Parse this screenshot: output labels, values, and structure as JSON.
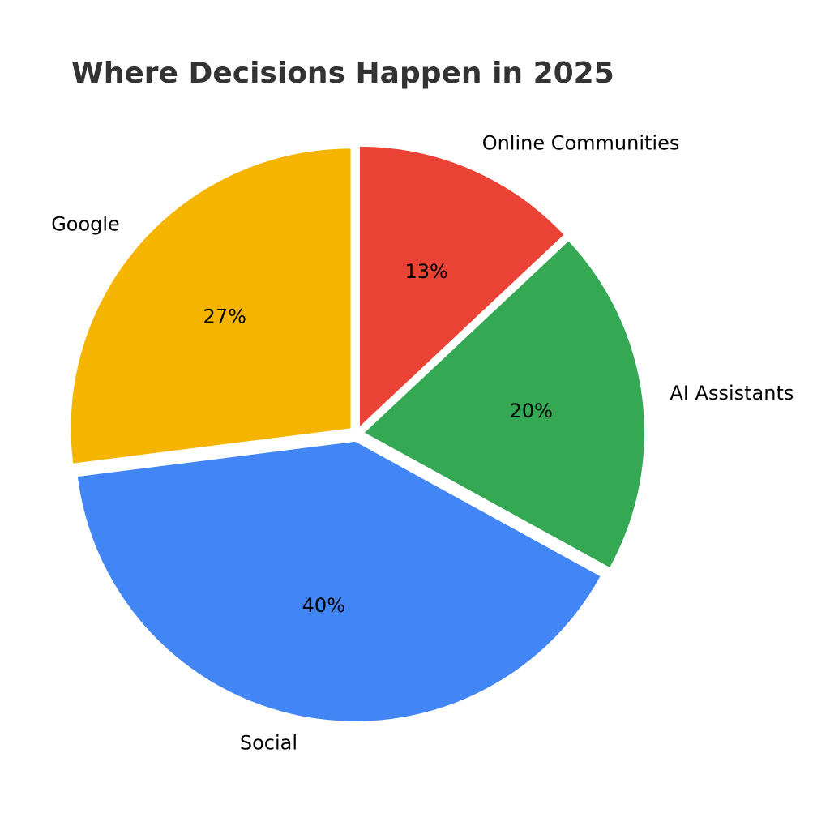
{
  "chart_data": {
    "type": "pie",
    "title": "Where Decisions Happen in 2025",
    "categories": [
      "Google",
      "Social",
      "AI Assistants",
      "Online Communities"
    ],
    "values": [
      27,
      40,
      20,
      13
    ],
    "value_labels": [
      "27%",
      "40%",
      "20%",
      "13%"
    ],
    "colors": [
      "#F4B400",
      "#4285F4",
      "#34A853",
      "#EA4335"
    ]
  }
}
